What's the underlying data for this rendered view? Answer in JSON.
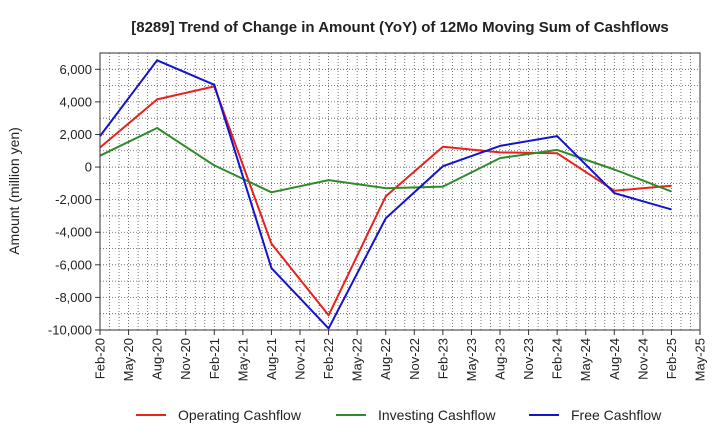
{
  "chart_data": {
    "type": "line",
    "title": "[8289]  Trend of Change in Amount (YoY) of 12Mo Moving Sum of Cashflows",
    "xlabel": "",
    "ylabel": "Amount (million yen)",
    "ylim": [
      -10000,
      7000
    ],
    "yticks": [
      6000,
      4000,
      2000,
      0,
      -2000,
      -4000,
      -6000,
      -8000,
      -10000
    ],
    "ytick_labels": [
      "6,000",
      "4,000",
      "2,000",
      "0",
      "-2,000",
      "-4,000",
      "-6,000",
      "-8,000",
      "-10,000"
    ],
    "categories": [
      "Feb-20",
      "May-20",
      "Aug-20",
      "Nov-20",
      "Feb-21",
      "May-21",
      "Aug-21",
      "Nov-21",
      "Feb-22",
      "May-22",
      "Aug-22",
      "Nov-22",
      "Feb-23",
      "May-23",
      "Aug-23",
      "Nov-23",
      "Feb-24",
      "May-24",
      "Aug-24",
      "Nov-24",
      "Feb-25",
      "May-25"
    ],
    "grid": true,
    "legend_position": "bottom",
    "series": [
      {
        "name": "Operating Cashflow",
        "color": "#e8221c",
        "values": [
          1200,
          null,
          4150,
          null,
          4950,
          null,
          -4700,
          null,
          -9100,
          null,
          -1800,
          null,
          1250,
          null,
          900,
          null,
          850,
          null,
          -1450,
          null,
          -1150,
          null
        ]
      },
      {
        "name": "Investing Cashflow",
        "color": "#2f8a2c",
        "values": [
          700,
          null,
          2400,
          null,
          100,
          null,
          -1550,
          null,
          -800,
          null,
          -1300,
          null,
          -1200,
          null,
          550,
          null,
          1050,
          null,
          -150,
          null,
          -1500,
          null
        ]
      },
      {
        "name": "Free Cashflow",
        "color": "#1414cc",
        "values": [
          1900,
          null,
          6550,
          null,
          5050,
          null,
          -6200,
          null,
          -9900,
          null,
          -3150,
          null,
          50,
          null,
          1300,
          null,
          1900,
          null,
          -1600,
          null,
          -2600,
          null
        ]
      }
    ]
  }
}
